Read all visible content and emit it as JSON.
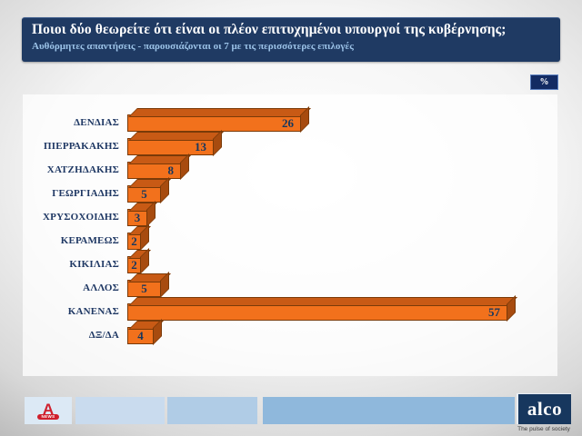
{
  "header": {
    "title": "Ποιοι δύο θεωρείτε ότι είναι οι πλέον επιτυχημένοι υπουργοί της κυβέρνησης;",
    "subtitle": "Αυθόρμητες απαντήσεις - παρουσιάζονται οι 7 με τις περισσότερες επιλογές"
  },
  "unit_badge": "%",
  "chart_data": {
    "type": "bar",
    "orientation": "horizontal",
    "title": "Ποιοι δύο θεωρείτε ότι είναι οι πλέον επιτυχημένοι υπουργοί της κυβέρνησης;",
    "categories": [
      "ΔΕΝΔΙΑΣ",
      "ΠΙΕΡΡΑΚΑΚΗΣ",
      "ΧΑΤΖΗΔΑΚΗΣ",
      "ΓΕΩΡΓΙΑΔΗΣ",
      "ΧΡΥΣΟΧΟΙΔΗΣ",
      "ΚΕΡΑΜΕΩΣ",
      "ΚΙΚΙΛΙΑΣ",
      "ΑΛΛΟΣ",
      "ΚΑΝΕΝΑΣ",
      "ΔΞ/ΔΑ"
    ],
    "values": [
      26,
      13,
      8,
      5,
      3,
      2,
      2,
      5,
      57,
      4
    ],
    "unit": "%",
    "xlim": [
      0,
      60
    ],
    "grid": false,
    "legend": "none",
    "bar_color": "#F2711C",
    "bar_top_color": "#C85A15",
    "bar_side_color": "#A74B0F",
    "bar_outline_color": "#7A3A08",
    "value_label_color": "#17375E",
    "category_label_color": "#1F3864"
  },
  "footer": {
    "segments": [
      {
        "color": "#DCE9F5"
      },
      {
        "color": "#C9DBEE"
      },
      {
        "color": "#B0CCE6"
      },
      {
        "color": "#8FB8DC"
      }
    ],
    "alpha_logo": {
      "letter": "A",
      "label": "NEWS",
      "color": "#CF1F2C"
    },
    "alco": {
      "name": "alco",
      "tagline": "The pulse of society",
      "bg": "#17375E"
    }
  },
  "colors": {
    "title_box_bg": "#1F3A63",
    "title_text": "#FFFFFF",
    "subtitle_text": "#9CC3E8",
    "badge_bg": "#132B63"
  }
}
